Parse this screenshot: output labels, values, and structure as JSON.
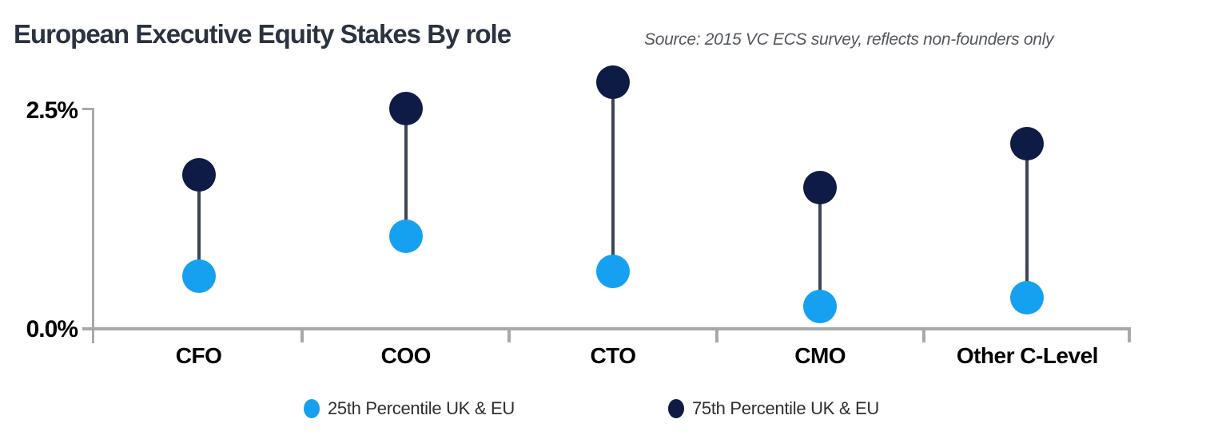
{
  "header": {
    "title": "European Executive Equity Stakes By role",
    "source": "Source: 2015 VC ECS survey, reflects non-founders only"
  },
  "axis": {
    "y_top_label": "2.5%",
    "y_bottom_label": "0.0%",
    "color": "#a9a9a9"
  },
  "legend": {
    "items": [
      {
        "label": "25th Percentile UK & EU",
        "color": "#15a1f0"
      },
      {
        "label": "75th Percentile UK & EU",
        "color": "#0e1b45"
      }
    ],
    "position": "bottom"
  },
  "chart_data": {
    "type": "dumbbell",
    "title": "European Executive Equity Stakes By role",
    "source": "Source: 2015 VC ECS survey, reflects non-founders only",
    "categories": [
      "CFO",
      "COO",
      "CTO",
      "CMO",
      "Other C-Level"
    ],
    "series": [
      {
        "name": "25th Percentile UK & EU",
        "color": "#15a1f0",
        "values": [
          0.6,
          1.05,
          0.65,
          0.25,
          0.35
        ]
      },
      {
        "name": "75th Percentile UK & EU",
        "color": "#0e1b45",
        "values": [
          1.75,
          2.5,
          2.8,
          1.6,
          2.1
        ]
      }
    ],
    "unit": "%",
    "xlabel": "",
    "ylabel": "",
    "ylim": [
      0,
      2.5
    ],
    "yticks": [
      "0.0%",
      "2.5%"
    ],
    "grid": false,
    "legend_position": "bottom",
    "connector_color": "#3d4655"
  }
}
